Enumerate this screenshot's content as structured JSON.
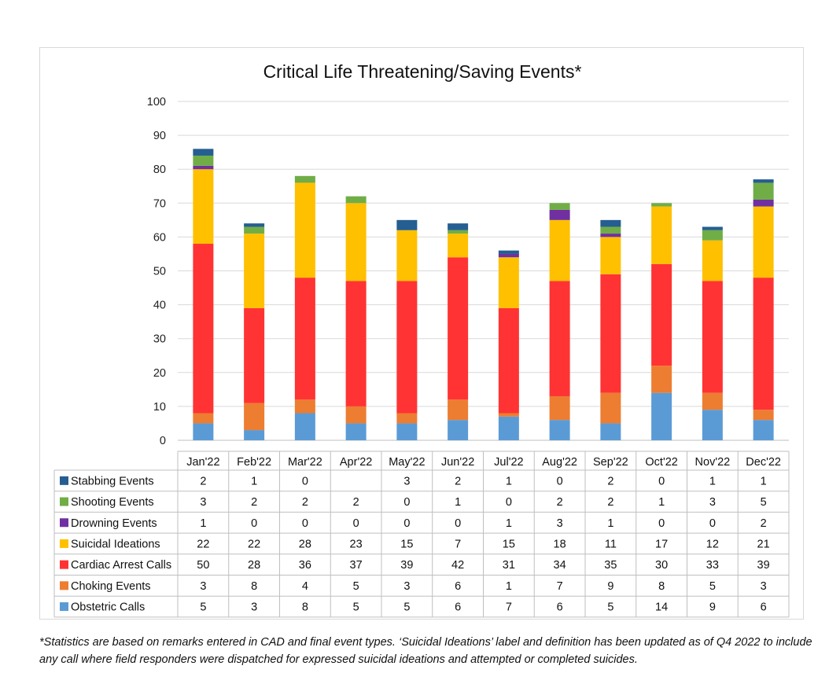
{
  "chart_data": {
    "type": "bar",
    "stacked": true,
    "title": "Critical Life Threatening/Saving Events*",
    "categories": [
      "Jan'22",
      "Feb'22",
      "Mar'22",
      "Apr'22",
      "May'22",
      "Jun'22",
      "Jul'22",
      "Aug'22",
      "Sep'22",
      "Oct'22",
      "Nov'22",
      "Dec'22"
    ],
    "ylim": [
      0,
      100
    ],
    "yticks": [
      "0",
      "10",
      "20",
      "30",
      "40",
      "50",
      "60",
      "70",
      "80",
      "90",
      "100"
    ],
    "grid": true,
    "legend": "data-table",
    "series": [
      {
        "name": "Obstetric Calls",
        "color": "#5b9bd5",
        "values": [
          5,
          3,
          8,
          5,
          5,
          6,
          7,
          6,
          5,
          14,
          9,
          6
        ]
      },
      {
        "name": "Choking Events",
        "color": "#ed7d31",
        "values": [
          3,
          8,
          4,
          5,
          3,
          6,
          1,
          7,
          9,
          8,
          5,
          3
        ]
      },
      {
        "name": "Cardiac Arrest Calls",
        "color": "#ff3333",
        "values": [
          50,
          28,
          36,
          37,
          39,
          42,
          31,
          34,
          35,
          30,
          33,
          39
        ]
      },
      {
        "name": "Suicidal Ideations",
        "color": "#ffc000",
        "values": [
          22,
          22,
          28,
          23,
          15,
          7,
          15,
          18,
          11,
          17,
          12,
          21
        ]
      },
      {
        "name": "Drowning Events",
        "color": "#7030a0",
        "values": [
          1,
          0,
          0,
          0,
          0,
          0,
          1,
          3,
          1,
          0,
          0,
          2
        ]
      },
      {
        "name": "Shooting Events",
        "color": "#70ad47",
        "values": [
          3,
          2,
          2,
          2,
          0,
          1,
          0,
          2,
          2,
          1,
          3,
          5
        ]
      },
      {
        "name": "Stabbing Events",
        "color": "#255e91",
        "values": [
          2,
          1,
          0,
          null,
          3,
          2,
          1,
          0,
          2,
          0,
          1,
          1
        ]
      }
    ],
    "table_rows": [
      {
        "name": "Stabbing Events",
        "color": "#255e91",
        "cells": [
          "2",
          "1",
          "0",
          "",
          "3",
          "2",
          "1",
          "0",
          "2",
          "0",
          "1",
          "1"
        ]
      },
      {
        "name": "Shooting Events",
        "color": "#70ad47",
        "cells": [
          "3",
          "2",
          "2",
          "2",
          "0",
          "1",
          "0",
          "2",
          "2",
          "1",
          "3",
          "5"
        ]
      },
      {
        "name": "Drowning Events",
        "color": "#7030a0",
        "cells": [
          "1",
          "0",
          "0",
          "0",
          "0",
          "0",
          "1",
          "3",
          "1",
          "0",
          "0",
          "2"
        ]
      },
      {
        "name": "Suicidal Ideations",
        "color": "#ffc000",
        "cells": [
          "22",
          "22",
          "28",
          "23",
          "15",
          "7",
          "15",
          "18",
          "11",
          "17",
          "12",
          "21"
        ]
      },
      {
        "name": "Cardiac Arrest Calls",
        "color": "#ff3333",
        "cells": [
          "50",
          "28",
          "36",
          "37",
          "39",
          "42",
          "31",
          "34",
          "35",
          "30",
          "33",
          "39"
        ]
      },
      {
        "name": "Choking Events",
        "color": "#ed7d31",
        "cells": [
          "3",
          "8",
          "4",
          "5",
          "3",
          "6",
          "1",
          "7",
          "9",
          "8",
          "5",
          "3"
        ]
      },
      {
        "name": "Obstetric Calls",
        "color": "#5b9bd5",
        "cells": [
          "5",
          "3",
          "8",
          "5",
          "5",
          "6",
          "7",
          "6",
          "5",
          "14",
          "9",
          "6"
        ]
      }
    ]
  },
  "footnote": "*Statistics are based on remarks entered in CAD and final event types. ‘Suicidal Ideations’ label and definition has been updated as of Q4 2022 to include any call where field responders were dispatched for expressed suicidal ideations and attempted or completed suicides."
}
